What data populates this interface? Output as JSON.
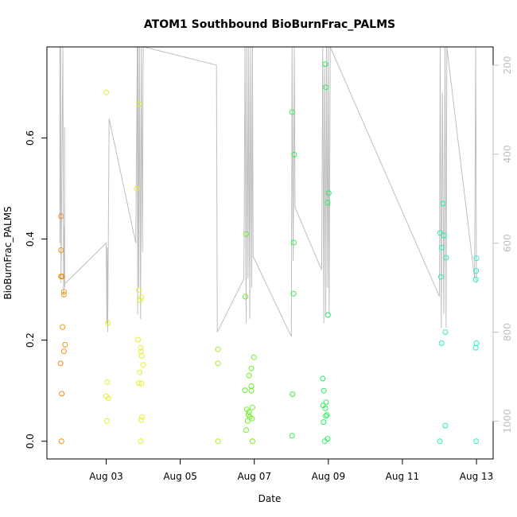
{
  "chart_data": {
    "type": "scatter",
    "title": "ATOM1 Southbound BioBurnFrac_PALMS",
    "xlabel": "Date",
    "ylabel": "BioBurnFrac_PALMS",
    "xlim": [
      1.4,
      13.45
    ],
    "ylim": [
      -0.035,
      0.78
    ],
    "x_ticks": [
      {
        "x": 3,
        "label": "Aug 03"
      },
      {
        "x": 5,
        "label": "Aug 05"
      },
      {
        "x": 7,
        "label": "Aug 07"
      },
      {
        "x": 9,
        "label": "Aug 09"
      },
      {
        "x": 11,
        "label": "Aug 11"
      },
      {
        "x": 13,
        "label": "Aug 13"
      }
    ],
    "y_ticks": [
      0.0,
      0.2,
      0.4,
      0.6
    ],
    "y_tick_labels": [
      "0.0",
      "0.2",
      "0.4",
      "0.6"
    ],
    "right_axis": {
      "ylim": [
        1085,
        159
      ],
      "ticks": [
        200,
        400,
        600,
        800,
        1000
      ],
      "tick_labels": [
        "200",
        "400",
        "600",
        "800",
        "1000"
      ],
      "color": "#bebebe"
    },
    "grid": false,
    "legend": "none",
    "track_color": "#bebebe",
    "points": [
      {
        "x": 1.78,
        "y": 0.445,
        "color": "#f28a1a"
      },
      {
        "x": 1.78,
        "y": 0.378,
        "color": "#f28a1a"
      },
      {
        "x": 1.78,
        "y": 0.326,
        "color": "#f28a1a"
      },
      {
        "x": 1.81,
        "y": 0.326,
        "color": "#f28a1a"
      },
      {
        "x": 1.86,
        "y": 0.296,
        "color": "#f29a1a"
      },
      {
        "x": 1.86,
        "y": 0.29,
        "color": "#f29a1a"
      },
      {
        "x": 1.82,
        "y": 0.226,
        "color": "#f29a1a"
      },
      {
        "x": 1.89,
        "y": 0.191,
        "color": "#f29a1a"
      },
      {
        "x": 1.86,
        "y": 0.178,
        "color": "#f29a1a"
      },
      {
        "x": 1.77,
        "y": 0.154,
        "color": "#f28a1a"
      },
      {
        "x": 1.8,
        "y": 0.094,
        "color": "#f28a1a"
      },
      {
        "x": 1.79,
        "y": 0.0,
        "color": "#f28a1a"
      },
      {
        "x": 3.0,
        "y": 0.69,
        "color": "#e6f026"
      },
      {
        "x": 3.05,
        "y": 0.234,
        "color": "#e6f026"
      },
      {
        "x": 3.03,
        "y": 0.117,
        "color": "#e6f026"
      },
      {
        "x": 3.0,
        "y": 0.089,
        "color": "#e6f026"
      },
      {
        "x": 3.06,
        "y": 0.085,
        "color": "#e6f026"
      },
      {
        "x": 3.02,
        "y": 0.04,
        "color": "#e6f026"
      },
      {
        "x": 3.88,
        "y": 0.667,
        "color": "#e6f026"
      },
      {
        "x": 3.82,
        "y": 0.5,
        "color": "#e6f026"
      },
      {
        "x": 3.88,
        "y": 0.299,
        "color": "#e6f026"
      },
      {
        "x": 3.95,
        "y": 0.285,
        "color": "#e6f026"
      },
      {
        "x": 3.92,
        "y": 0.279,
        "color": "#e6f026"
      },
      {
        "x": 3.86,
        "y": 0.201,
        "color": "#e6f026"
      },
      {
        "x": 3.93,
        "y": 0.185,
        "color": "#e6f026"
      },
      {
        "x": 3.94,
        "y": 0.177,
        "color": "#e6f026"
      },
      {
        "x": 3.96,
        "y": 0.169,
        "color": "#e6f026"
      },
      {
        "x": 4.0,
        "y": 0.151,
        "color": "#e6f026"
      },
      {
        "x": 3.9,
        "y": 0.136,
        "color": "#e6f026"
      },
      {
        "x": 3.88,
        "y": 0.115,
        "color": "#e6f026"
      },
      {
        "x": 3.95,
        "y": 0.114,
        "color": "#e6f026"
      },
      {
        "x": 3.97,
        "y": 0.048,
        "color": "#e6f026"
      },
      {
        "x": 3.95,
        "y": 0.042,
        "color": "#e6f026"
      },
      {
        "x": 3.93,
        "y": 0.0,
        "color": "#e6f026"
      },
      {
        "x": 6.02,
        "y": 0.182,
        "color": "#a6f026"
      },
      {
        "x": 6.02,
        "y": 0.154,
        "color": "#a6f026"
      },
      {
        "x": 6.02,
        "y": 0.0,
        "color": "#a6f026"
      },
      {
        "x": 6.78,
        "y": 0.41,
        "color": "#5ef026"
      },
      {
        "x": 6.76,
        "y": 0.286,
        "color": "#5ef026"
      },
      {
        "x": 6.99,
        "y": 0.166,
        "color": "#6ef026"
      },
      {
        "x": 6.92,
        "y": 0.144,
        "color": "#6ef026"
      },
      {
        "x": 6.86,
        "y": 0.13,
        "color": "#6ef026"
      },
      {
        "x": 6.92,
        "y": 0.109,
        "color": "#6ef026"
      },
      {
        "x": 6.75,
        "y": 0.101,
        "color": "#6ef026"
      },
      {
        "x": 6.92,
        "y": 0.1,
        "color": "#6ef026"
      },
      {
        "x": 6.95,
        "y": 0.067,
        "color": "#6ef026"
      },
      {
        "x": 6.8,
        "y": 0.063,
        "color": "#6ef026"
      },
      {
        "x": 6.86,
        "y": 0.058,
        "color": "#6ef026"
      },
      {
        "x": 6.84,
        "y": 0.052,
        "color": "#6ef026"
      },
      {
        "x": 6.88,
        "y": 0.048,
        "color": "#6ef026"
      },
      {
        "x": 6.94,
        "y": 0.045,
        "color": "#6ef026"
      },
      {
        "x": 6.82,
        "y": 0.04,
        "color": "#6ef026"
      },
      {
        "x": 6.78,
        "y": 0.022,
        "color": "#6ef026"
      },
      {
        "x": 6.95,
        "y": 0.0,
        "color": "#6ef026"
      },
      {
        "x": 8.02,
        "y": 0.651,
        "color": "#34f04a"
      },
      {
        "x": 8.08,
        "y": 0.567,
        "color": "#34f04a"
      },
      {
        "x": 8.07,
        "y": 0.393,
        "color": "#34f04a"
      },
      {
        "x": 8.06,
        "y": 0.292,
        "color": "#34f04a"
      },
      {
        "x": 8.03,
        "y": 0.093,
        "color": "#34f04a"
      },
      {
        "x": 8.02,
        "y": 0.011,
        "color": "#34f04a"
      },
      {
        "x": 8.92,
        "y": 0.746,
        "color": "#26f05e"
      },
      {
        "x": 8.93,
        "y": 0.7,
        "color": "#26f05e"
      },
      {
        "x": 9.01,
        "y": 0.491,
        "color": "#26f05e"
      },
      {
        "x": 8.98,
        "y": 0.472,
        "color": "#26f05e"
      },
      {
        "x": 8.99,
        "y": 0.25,
        "color": "#26f05e"
      },
      {
        "x": 8.85,
        "y": 0.124,
        "color": "#26f05e"
      },
      {
        "x": 8.88,
        "y": 0.1,
        "color": "#26f05e"
      },
      {
        "x": 8.94,
        "y": 0.077,
        "color": "#26f05e"
      },
      {
        "x": 8.86,
        "y": 0.071,
        "color": "#26f05e"
      },
      {
        "x": 8.92,
        "y": 0.065,
        "color": "#26f05e"
      },
      {
        "x": 8.96,
        "y": 0.052,
        "color": "#26f05e"
      },
      {
        "x": 8.93,
        "y": 0.05,
        "color": "#26f05e"
      },
      {
        "x": 8.87,
        "y": 0.038,
        "color": "#26f05e"
      },
      {
        "x": 8.98,
        "y": 0.005,
        "color": "#26f05e"
      },
      {
        "x": 8.9,
        "y": 0.0,
        "color": "#26f05e"
      },
      {
        "x": 12.1,
        "y": 0.47,
        "color": "#26f0b4"
      },
      {
        "x": 12.02,
        "y": 0.412,
        "color": "#26f0b4"
      },
      {
        "x": 12.12,
        "y": 0.407,
        "color": "#26f0b4"
      },
      {
        "x": 12.06,
        "y": 0.383,
        "color": "#26f0b4"
      },
      {
        "x": 12.18,
        "y": 0.363,
        "color": "#26f0b4"
      },
      {
        "x": 12.04,
        "y": 0.325,
        "color": "#26f0b4"
      },
      {
        "x": 12.16,
        "y": 0.216,
        "color": "#26f0b4"
      },
      {
        "x": 12.06,
        "y": 0.194,
        "color": "#26f0b4"
      },
      {
        "x": 12.16,
        "y": 0.031,
        "color": "#26f0b4"
      },
      {
        "x": 12.01,
        "y": 0.0,
        "color": "#26f0b4"
      },
      {
        "x": 13.0,
        "y": 0.362,
        "color": "#26f0c8"
      },
      {
        "x": 12.99,
        "y": 0.337,
        "color": "#26f0c8"
      },
      {
        "x": 12.98,
        "y": 0.32,
        "color": "#26f0c8"
      },
      {
        "x": 13.0,
        "y": 0.194,
        "color": "#26f0c8"
      },
      {
        "x": 12.98,
        "y": 0.185,
        "color": "#26f0c8"
      },
      {
        "x": 12.99,
        "y": 0.0,
        "color": "#26f0c8"
      }
    ],
    "pressure_track": [
      [
        1.75,
        159
      ],
      [
        1.75,
        600
      ],
      [
        1.77,
        159
      ],
      [
        1.78,
        690
      ],
      [
        1.83,
        159
      ],
      [
        1.85,
        720
      ],
      [
        1.87,
        560
      ],
      [
        1.88,
        700
      ],
      [
        1.88,
        340
      ],
      [
        1.88,
        690
      ],
      [
        1.9,
        690
      ],
      [
        3.0,
        600
      ],
      [
        3.02,
        780
      ],
      [
        3.03,
        610
      ],
      [
        3.04,
        800
      ],
      [
        3.08,
        320
      ],
      [
        3.8,
        600
      ],
      [
        3.84,
        159
      ],
      [
        3.85,
        760
      ],
      [
        3.86,
        159
      ],
      [
        3.88,
        700
      ],
      [
        3.9,
        159
      ],
      [
        3.93,
        770
      ],
      [
        3.95,
        159
      ],
      [
        3.98,
        620
      ],
      [
        4.0,
        159
      ],
      [
        4.02,
        159
      ],
      [
        5.98,
        200
      ],
      [
        6.0,
        800
      ],
      [
        6.72,
        680
      ],
      [
        6.75,
        159
      ],
      [
        6.78,
        780
      ],
      [
        6.8,
        159
      ],
      [
        6.83,
        680
      ],
      [
        6.85,
        159
      ],
      [
        6.88,
        770
      ],
      [
        6.9,
        159
      ],
      [
        6.93,
        700
      ],
      [
        6.95,
        159
      ],
      [
        6.97,
        630
      ],
      [
        8.0,
        810
      ],
      [
        8.02,
        159
      ],
      [
        8.05,
        640
      ],
      [
        8.08,
        159
      ],
      [
        8.1,
        520
      ],
      [
        8.82,
        660
      ],
      [
        8.85,
        159
      ],
      [
        8.88,
        780
      ],
      [
        8.9,
        200
      ],
      [
        8.93,
        760
      ],
      [
        8.95,
        159
      ],
      [
        8.98,
        700
      ],
      [
        9.0,
        159
      ],
      [
        9.02,
        760
      ],
      [
        9.05,
        159
      ],
      [
        12.0,
        720
      ],
      [
        12.02,
        159
      ],
      [
        12.05,
        790
      ],
      [
        12.08,
        260
      ],
      [
        12.12,
        760
      ],
      [
        12.15,
        159
      ],
      [
        12.18,
        790
      ],
      [
        12.2,
        159
      ],
      [
        12.95,
        680
      ],
      [
        12.98,
        159
      ],
      [
        13.0,
        690
      ]
    ]
  }
}
